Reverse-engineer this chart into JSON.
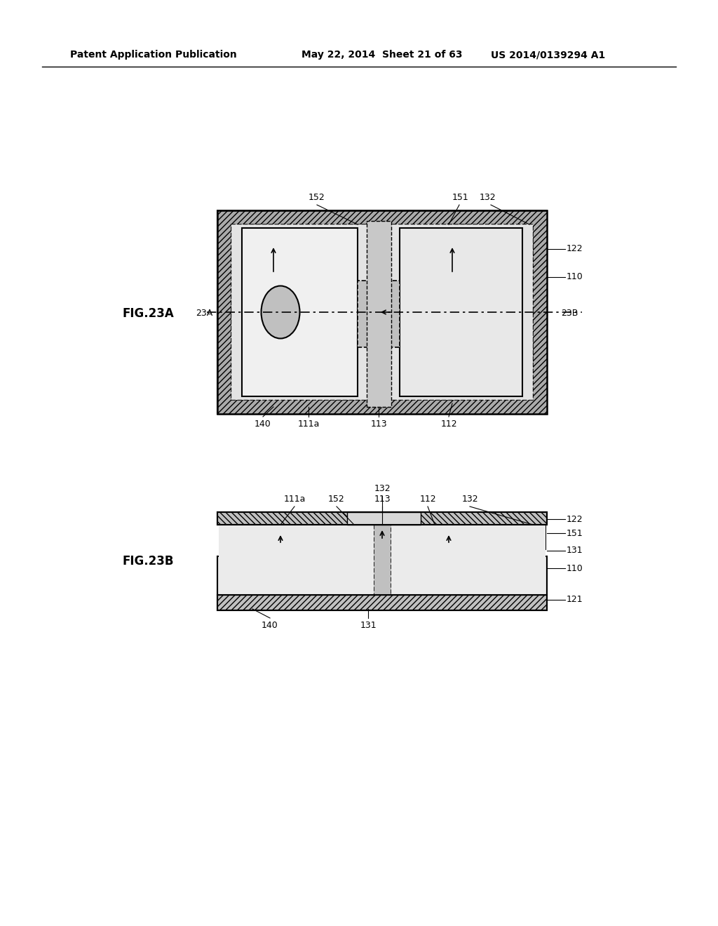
{
  "bg_color": "#ffffff",
  "header_left": "Patent Application Publication",
  "header_mid": "May 22, 2014  Sheet 21 of 63",
  "header_right": "US 2014/0139294 A1",
  "fig23a_label": "FIG.23A",
  "fig23b_label": "FIG.23B",
  "line_color": "#000000",
  "hatch_color": "#555555",
  "dot_fill": "#d8d8d8",
  "gray_fill": "#b0b0b0",
  "dark_gray": "#888888",
  "light_gray": "#e8e8e8"
}
